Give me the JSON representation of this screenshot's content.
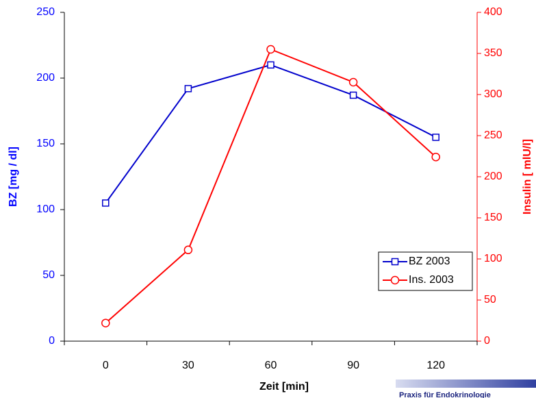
{
  "chart_data": {
    "type": "line",
    "categories": [
      "0",
      "30",
      "60",
      "90",
      "120"
    ],
    "x_label": "Zeit [min]",
    "y_label": "BZ [mg / dl]",
    "y2_label": "Insulin [ mlU/l]",
    "ylim": [
      0,
      250
    ],
    "yticks": [
      0,
      50,
      100,
      150,
      200,
      250
    ],
    "y2lim": [
      0,
      400
    ],
    "y2ticks": [
      0,
      50,
      100,
      150,
      200,
      250,
      300,
      350,
      400
    ],
    "y_color": "#0000ff",
    "y2_color": "#ff0000",
    "legend": "right",
    "series": [
      {
        "name": "BZ 2003",
        "color": "#0000cc",
        "marker": "square",
        "values": [
          105,
          192,
          210,
          187,
          155
        ]
      },
      {
        "name": "Ins. 2003",
        "color": "#ff0000",
        "marker": "circle",
        "axis": "y2",
        "values": [
          22,
          111,
          355,
          315,
          224
        ]
      }
    ]
  },
  "footer_logo": "Praxis für Endokrinologie"
}
